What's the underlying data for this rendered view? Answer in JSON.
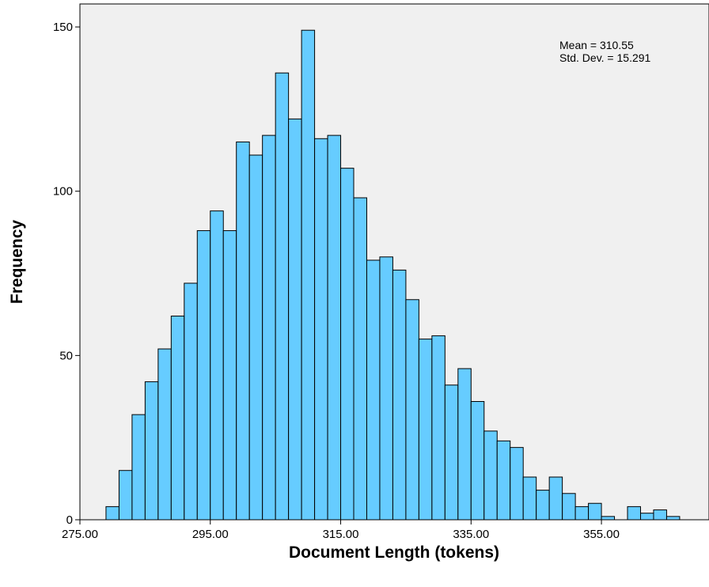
{
  "chart_data": {
    "type": "bar",
    "subtype": "histogram",
    "xlabel": "Document Length (tokens)",
    "ylabel": "Frequency",
    "xlim": [
      275,
      371.5
    ],
    "ylim": [
      0,
      157
    ],
    "x_ticks": [
      275,
      295,
      315,
      335,
      355
    ],
    "x_tick_labels": [
      "275.00",
      "295.00",
      "315.00",
      "335.00",
      "355.00"
    ],
    "y_ticks": [
      0,
      50,
      100,
      150
    ],
    "y_tick_labels": [
      "0",
      "50",
      "100",
      "150"
    ],
    "bin_width": 2,
    "bin_start": 279,
    "values": [
      4,
      15,
      32,
      42,
      52,
      62,
      72,
      88,
      94,
      88,
      115,
      111,
      117,
      136,
      122,
      149,
      116,
      117,
      107,
      98,
      79,
      80,
      76,
      67,
      55,
      56,
      41,
      46,
      36,
      27,
      24,
      22,
      13,
      9,
      13,
      8,
      4,
      5,
      1,
      0,
      4,
      2,
      3,
      1
    ],
    "stats": {
      "mean_label": "Mean = 310.55",
      "std_label": "Std. Dev. = 15.291"
    },
    "grid": false,
    "colors": {
      "bar_fill": "#66ccff",
      "bar_stroke": "#000000",
      "plot_bg": "#f0f0f0"
    }
  }
}
